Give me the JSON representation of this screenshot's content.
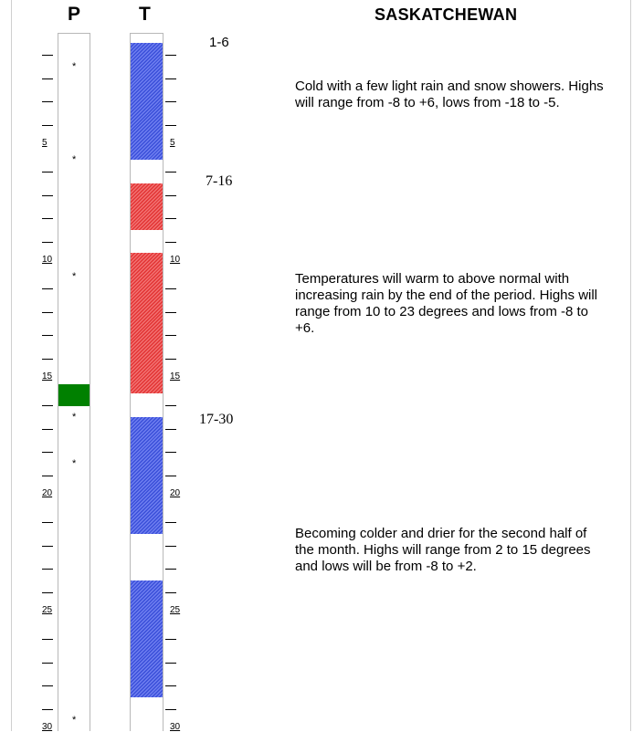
{
  "header": {
    "p_label": "P",
    "t_label": "T",
    "region": "SASKATCHEWAN"
  },
  "day_labels": [
    "5",
    "10",
    "15",
    "20",
    "25",
    "30"
  ],
  "precip_stars": [
    2,
    6,
    11,
    17,
    19,
    30
  ],
  "precip_wet_days": [
    16
  ],
  "temp_segments": [
    {
      "start": 1,
      "end": 5,
      "type": "cold",
      "color": "#3f51e0"
    },
    {
      "start": 7,
      "end": 8,
      "type": "warm",
      "color": "#e23b3b"
    },
    {
      "start": 10,
      "end": 15,
      "type": "warm",
      "color": "#e23b3b"
    },
    {
      "start": 17,
      "end": 21,
      "type": "cold",
      "color": "#3f51e0"
    },
    {
      "start": 24,
      "end": 28,
      "type": "cold",
      "color": "#3f51e0"
    }
  ],
  "periods": [
    {
      "label": "1-6",
      "text": "Cold with a few light rain and snow showers. Highs will range from -8 to +6, lows from -18 to -5."
    },
    {
      "label": "7-16",
      "text": "Temperatures will warm to above normal with increasing rain by the end of the period. Highs will range from 10 to 23 degrees and lows from -8 to +6."
    },
    {
      "label": "17-30",
      "text": "Becoming colder and drier for the second half of the month. Highs will range from 2 to 15 degrees and lows will be from -8 to +2."
    }
  ],
  "precip_color": "#008000"
}
